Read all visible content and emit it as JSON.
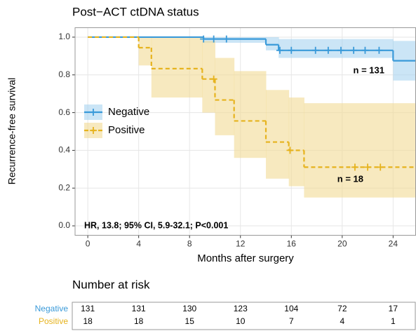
{
  "chart_data": {
    "type": "km",
    "title": "Post−ACT ctDNA status",
    "x_label": "Months after surgery",
    "y_label": "Recurrence-free survival",
    "xlim": [
      -1.0,
      25.8
    ],
    "ylim": [
      -0.05,
      1.05
    ],
    "xticks": [
      0,
      4,
      8,
      12,
      16,
      20,
      24
    ],
    "yticks": [
      {
        "value": 0,
        "label": "0.0"
      },
      0.2,
      0.4,
      0.6,
      0.8,
      {
        "value": 1,
        "label": "1.0"
      }
    ],
    "grid": true,
    "legend": "left",
    "series": [
      {
        "name": "Negative",
        "color": "#3a9ad9",
        "band_color": "#a9d4f0",
        "dashed": false,
        "x": [
          0,
          9.1,
          14,
          15,
          24,
          25.8
        ],
        "values": [
          1.0,
          0.99,
          0.96,
          0.93,
          0.875,
          0.875
        ],
        "lower": [
          1.0,
          0.97,
          0.93,
          0.89,
          0.77,
          0.77
        ],
        "upper": [
          1.0,
          1.0,
          1.0,
          0.99,
          0.98,
          0.98
        ],
        "censors": [
          9.1,
          9.9,
          10.9,
          15.1,
          16,
          17.9,
          18.9,
          19.9,
          20.9,
          21.8,
          22.9
        ]
      },
      {
        "name": "Positive",
        "color": "#e6b31e",
        "band_color": "#f2db95",
        "dashed": true,
        "x": [
          0,
          4,
          5,
          9,
          10,
          11.5,
          14,
          15.8,
          17,
          25.8
        ],
        "values": [
          1.0,
          0.944,
          0.833,
          0.778,
          0.667,
          0.556,
          0.444,
          0.4,
          0.311,
          0.311
        ],
        "lower": [
          1.0,
          0.85,
          0.68,
          0.6,
          0.48,
          0.36,
          0.25,
          0.21,
          0.15,
          0.15
        ],
        "upper": [
          1.0,
          1.0,
          1.0,
          0.98,
          0.89,
          0.82,
          0.72,
          0.68,
          0.65,
          0.65
        ],
        "censors": [
          9.9,
          15.9,
          21,
          22,
          23
        ]
      }
    ],
    "annotations": [
      "n = 131",
      "n = 18",
      "HR, 13.8; 95% CI, 5.9-32.1; P<0.001"
    ],
    "risk_table": {
      "title": "Number at risk",
      "rows": [
        {
          "name": "Negative",
          "color": "#3a9ad9",
          "values": [
            131,
            131,
            130,
            123,
            104,
            72,
            17
          ]
        },
        {
          "name": "Positive",
          "color": "#e6b31e",
          "values": [
            18,
            18,
            15,
            10,
            7,
            4,
            1
          ]
        }
      ]
    }
  }
}
